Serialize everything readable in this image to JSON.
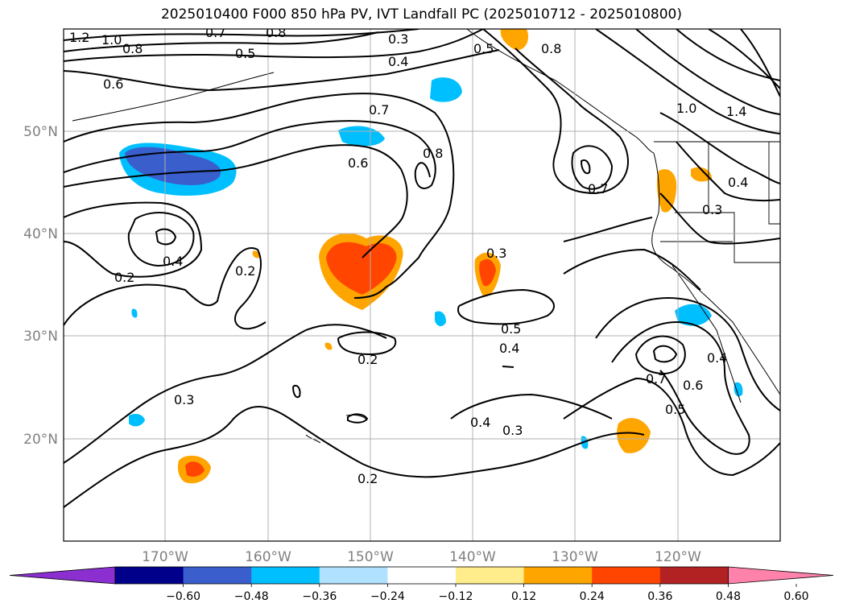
{
  "title": "2025010400 F000 850 hPa PV, IVT Landfall PC (2025010712 - 2025010800)",
  "lon_labels": [
    "170°W",
    "160°W",
    "150°W",
    "140°W",
    "130°W",
    "120°W"
  ],
  "lat_labels": [
    "50°N",
    "40°N",
    "30°N",
    "20°N"
  ],
  "colorbar": {
    "colors": [
      "#8b2fd0",
      "#00008b",
      "#3a5fcd",
      "#00bfff",
      "#b0e2ff",
      "#ffffff",
      "#ffec8b",
      "#ffa500",
      "#ff4500",
      "#b22222",
      "#ff82ab"
    ],
    "tick_labels": [
      "−0.60",
      "−0.48",
      "−0.36",
      "−0.24",
      "−0.12",
      "0.12",
      "0.24",
      "0.36",
      "0.48",
      "0.60"
    ]
  },
  "contour_labels": [
    "1.2",
    "1.0",
    "0.8",
    "0.7",
    "0.8",
    "0.3",
    "0.5",
    "0.4",
    "0.5",
    "0.6",
    "0.7",
    "0.8",
    "0.6",
    "0.8",
    "0.7",
    "1.0",
    "1.4",
    "0.4",
    "0.3",
    "0.4",
    "0.2",
    "0.2",
    "0.3",
    "0.5",
    "0.4",
    "0.2",
    "0.3",
    "0.4",
    "0.3",
    "0.7",
    "0.6",
    "0.5",
    "0.4",
    "0.2"
  ]
}
